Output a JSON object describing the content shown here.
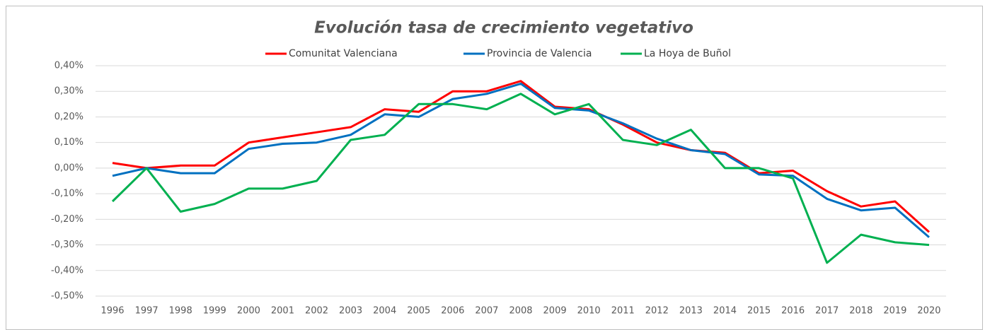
{
  "chart_data": {
    "type": "line",
    "title": "Evolución tasa de crecimiento vegetativo",
    "categories": [
      "1996",
      "1997",
      "1998",
      "1999",
      "2000",
      "2001",
      "2002",
      "2003",
      "2004",
      "2005",
      "2006",
      "2007",
      "2008",
      "2009",
      "2010",
      "2011",
      "2012",
      "2013",
      "2014",
      "2015",
      "2016",
      "2017",
      "2018",
      "2019",
      "2020"
    ],
    "series": [
      {
        "name": "Comunitat Valenciana",
        "color": "#ff0000",
        "values": [
          0.02,
          0.0,
          0.01,
          0.01,
          0.1,
          0.12,
          0.14,
          0.16,
          0.23,
          0.22,
          0.3,
          0.3,
          0.34,
          0.24,
          0.23,
          0.17,
          0.1,
          0.07,
          0.06,
          -0.02,
          -0.01,
          -0.09,
          -0.15,
          -0.13,
          -0.25
        ]
      },
      {
        "name": "Provincia de Valencia",
        "color": "#0070c0",
        "values": [
          -0.03,
          0.0,
          -0.02,
          -0.02,
          0.075,
          0.095,
          0.1,
          0.13,
          0.21,
          0.2,
          0.27,
          0.29,
          0.33,
          0.235,
          0.225,
          0.175,
          0.115,
          0.07,
          0.055,
          -0.025,
          -0.03,
          -0.12,
          -0.165,
          -0.155,
          -0.27
        ]
      },
      {
        "name": "La Hoya de Buñol",
        "color": "#00b050",
        "values": [
          -0.13,
          0.0,
          -0.17,
          -0.14,
          -0.08,
          -0.08,
          -0.05,
          0.11,
          0.13,
          0.25,
          0.25,
          0.23,
          0.29,
          0.21,
          0.25,
          0.11,
          0.09,
          0.15,
          0.0,
          0.0,
          -0.04,
          -0.37,
          -0.26,
          -0.29,
          -0.3
        ]
      }
    ],
    "ylim": [
      -0.5,
      0.4
    ],
    "yticks": [
      {
        "value": -0.5,
        "label": "-0,50%"
      },
      {
        "value": -0.4,
        "label": "-0,40%"
      },
      {
        "value": -0.3,
        "label": "-0,30%"
      },
      {
        "value": -0.2,
        "label": "-0,20%"
      },
      {
        "value": -0.1,
        "label": "-0,10%"
      },
      {
        "value": 0,
        "label": "0,00%"
      },
      {
        "value": 0.1,
        "label": "0,10%"
      },
      {
        "value": 0.2,
        "label": "0,20%"
      },
      {
        "value": 0.3,
        "label": "0,30%"
      },
      {
        "value": 0.4,
        "label": "0,40%"
      }
    ],
    "grid": true,
    "legend": "top"
  }
}
